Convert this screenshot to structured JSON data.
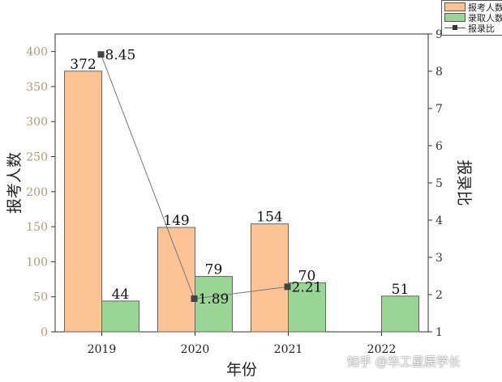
{
  "chart_data": {
    "type": "bar",
    "categories": [
      "2019",
      "2020",
      "2021",
      "2022"
    ],
    "series": [
      {
        "name": "报考人数",
        "values": [
          372,
          149,
          154,
          null
        ],
        "color": "#fcc494",
        "axis": "left"
      },
      {
        "name": "录取人数",
        "values": [
          44,
          79,
          70,
          51
        ],
        "color": "#99d594",
        "axis": "left"
      }
    ],
    "line_series": {
      "name": "报录比",
      "values": [
        8.45,
        1.89,
        2.21,
        null
      ],
      "axis": "right",
      "color": "#555555"
    },
    "xlabel": "年份",
    "ylabel": "报考人数",
    "y2label": "报录比",
    "ylim": [
      0,
      425
    ],
    "y2lim": [
      1,
      9
    ],
    "yticks": [
      0,
      50,
      100,
      150,
      200,
      250,
      300,
      350,
      400
    ],
    "y2ticks": [
      1,
      2,
      3,
      4,
      5,
      6,
      7,
      8,
      9
    ],
    "legend_position": "top-right",
    "line_labels": [
      "8.45",
      "1.89",
      "2.21",
      ""
    ],
    "bar_labels": [
      [
        "372",
        "149",
        "154",
        ""
      ],
      [
        "44",
        "79",
        "70",
        "51"
      ]
    ]
  },
  "legend": {
    "items": [
      {
        "label": "报考人数",
        "kind": "bar",
        "color": "#fcc494"
      },
      {
        "label": "录取人数",
        "kind": "bar",
        "color": "#99d594"
      },
      {
        "label": "报录比",
        "kind": "line"
      }
    ]
  },
  "watermark": "知乎 @华工星辰学长"
}
